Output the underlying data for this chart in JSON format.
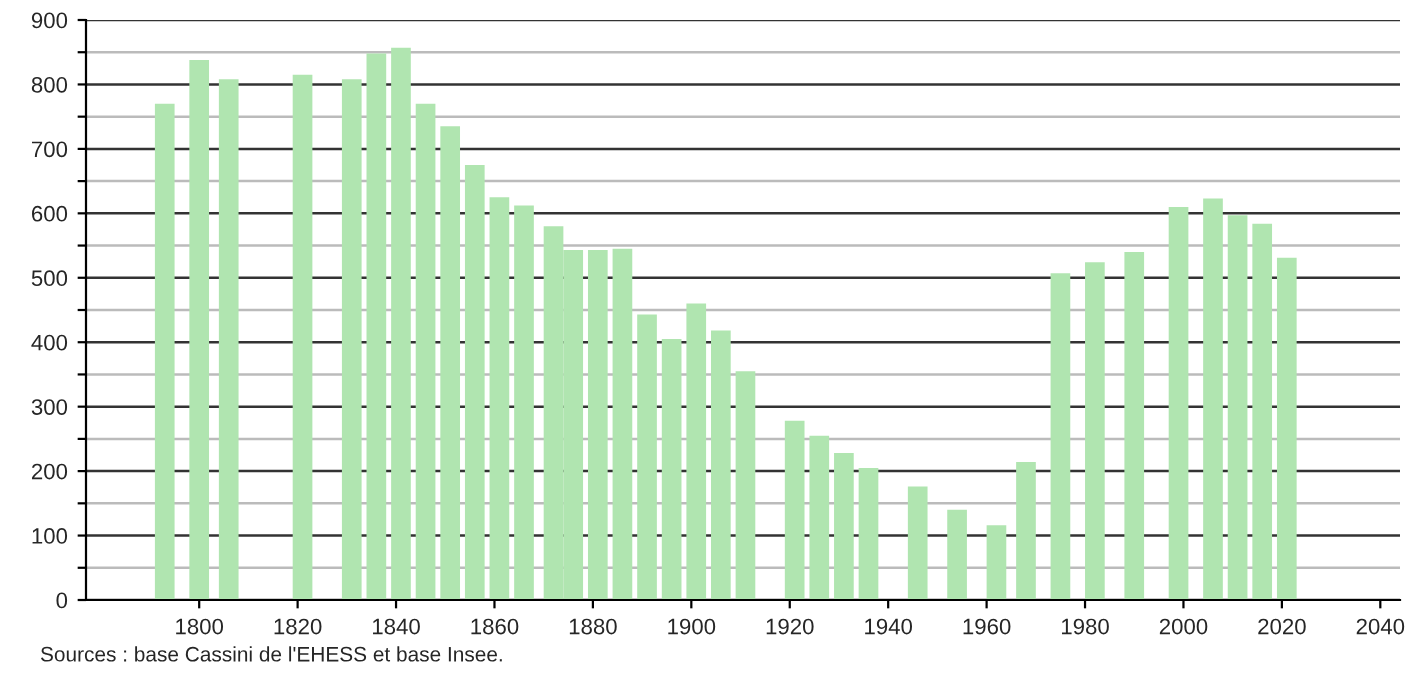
{
  "chart_data": {
    "type": "bar",
    "x": [
      1793,
      1800,
      1806,
      1821,
      1831,
      1836,
      1841,
      1846,
      1851,
      1856,
      1861,
      1866,
      1872,
      1876,
      1881,
      1886,
      1891,
      1896,
      1901,
      1906,
      1911,
      1921,
      1926,
      1931,
      1936,
      1946,
      1954,
      1962,
      1968,
      1975,
      1982,
      1990,
      1999,
      2006,
      2011,
      2016,
      2021
    ],
    "values": [
      770,
      838,
      808,
      815,
      808,
      848,
      857,
      770,
      735,
      675,
      625,
      612,
      580,
      543,
      543,
      545,
      443,
      405,
      460,
      418,
      355,
      278,
      255,
      228,
      205,
      176,
      140,
      116,
      214,
      507,
      524,
      540,
      610,
      623,
      597,
      584,
      531
    ],
    "color": "#b0e5b0",
    "xlim": [
      1777,
      2044
    ],
    "xticks": [
      1800,
      1820,
      1840,
      1860,
      1880,
      1900,
      1920,
      1940,
      1960,
      1980,
      2000,
      2020,
      2040
    ],
    "ylim": [
      0,
      900
    ],
    "yticks": [
      0,
      {
        "value": 50,
        "label": null
      },
      100,
      {
        "value": 150,
        "label": null
      },
      200,
      {
        "value": 250,
        "label": null
      },
      300,
      {
        "value": 350,
        "label": null
      },
      400,
      {
        "value": 450,
        "label": null
      },
      500,
      {
        "value": 550,
        "label": null
      },
      600,
      {
        "value": 650,
        "label": null
      },
      700,
      {
        "value": 750,
        "label": null
      },
      800,
      {
        "value": 850,
        "label": null
      },
      900
    ],
    "grid": "y",
    "annotations": [
      "Sources : base Cassini de l'EHESS et base Insee."
    ]
  }
}
